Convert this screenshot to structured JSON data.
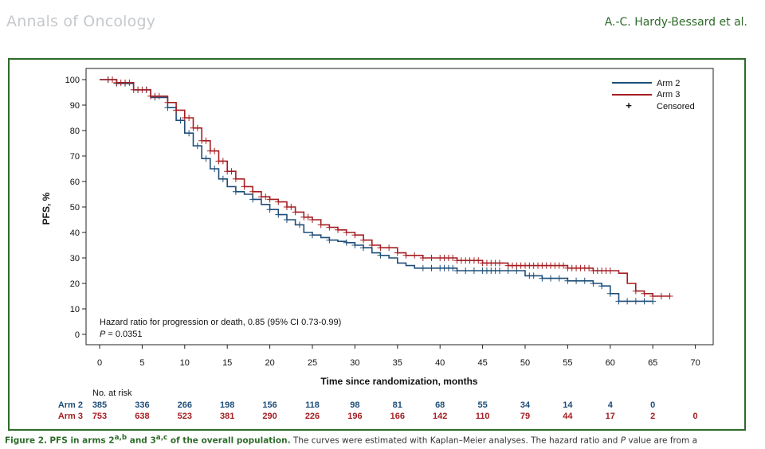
{
  "header": {
    "journal": "Annals of Oncology",
    "authors": "A.-C. Hardy-Bessard et al."
  },
  "caption": {
    "label": "Figure 2.",
    "title_pre": "PFS in arms 2",
    "sup_arm2": "a,b",
    "title_mid": " and 3",
    "sup_arm3": "a,c",
    "title_post": " of the overall population.",
    "body_pre": " The curves were estimated with Kaplan–Meier analyses. The hazard ratio and ",
    "p_letter": "P",
    "body_post": " value are from a"
  },
  "colors": {
    "arm2": "#1f4e79",
    "arm3": "#a51e22",
    "frame": "#2e6b2a"
  },
  "chart_data": {
    "type": "line",
    "ylabel": "PFS, %",
    "xlabel": "Time since randomization, months",
    "xlim": [
      0,
      70
    ],
    "ylim": [
      0,
      100
    ],
    "x_ticks": [
      "0",
      "5",
      "10",
      "15",
      "20",
      "25",
      "30",
      "35",
      "40",
      "45",
      "50",
      "55",
      "60",
      "65",
      "70"
    ],
    "y_ticks": [
      "0",
      "10",
      "20",
      "30",
      "40",
      "50",
      "60",
      "70",
      "80",
      "90",
      "100"
    ],
    "legend": {
      "placement": "top-right",
      "arm2": "Arm 2",
      "arm3": "Arm 3",
      "censored": "Censored",
      "censor_symbol": "+"
    },
    "annotation": {
      "hazard_text": "Hazard ratio for progression or death, 0.85 (95% CI  0.73-0.99)",
      "p_label": "P",
      "p_value": " = 0.0351"
    },
    "series": [
      {
        "name": "Arm 2",
        "points": [
          [
            0,
            100
          ],
          [
            2,
            98.5
          ],
          [
            4,
            96
          ],
          [
            6,
            93
          ],
          [
            8,
            89
          ],
          [
            9,
            84
          ],
          [
            10,
            79
          ],
          [
            11,
            74
          ],
          [
            12,
            69
          ],
          [
            13,
            65
          ],
          [
            14,
            61
          ],
          [
            15,
            58
          ],
          [
            16,
            56
          ],
          [
            17,
            55
          ],
          [
            18,
            53
          ],
          [
            19,
            51
          ],
          [
            20,
            49
          ],
          [
            21,
            47
          ],
          [
            22,
            45
          ],
          [
            23,
            43
          ],
          [
            24,
            40
          ],
          [
            25,
            39
          ],
          [
            26,
            38
          ],
          [
            27,
            37
          ],
          [
            28,
            36.5
          ],
          [
            29,
            36
          ],
          [
            30,
            35
          ],
          [
            31,
            34
          ],
          [
            32,
            32
          ],
          [
            33,
            31
          ],
          [
            34,
            30
          ],
          [
            35,
            28
          ],
          [
            36,
            27
          ],
          [
            37,
            26
          ],
          [
            40,
            26
          ],
          [
            42,
            25
          ],
          [
            48,
            25
          ],
          [
            50,
            23
          ],
          [
            52,
            22
          ],
          [
            55,
            21
          ],
          [
            58,
            20
          ],
          [
            59,
            19
          ],
          [
            60,
            16
          ],
          [
            61,
            13
          ],
          [
            65,
            13
          ]
        ],
        "censor_x": [
          1,
          2,
          3,
          4.5,
          5.5,
          6.5,
          8,
          9.5,
          10.5,
          11.5,
          12.5,
          13.5,
          14.5,
          16,
          18,
          20,
          21,
          22,
          23.5,
          25,
          27,
          29,
          30,
          31,
          33,
          38,
          39,
          40,
          40.5,
          41,
          41.5,
          42,
          43,
          44,
          45,
          45.5,
          46,
          46.5,
          47,
          48,
          49,
          50.5,
          51,
          52,
          53,
          54,
          55,
          56,
          57,
          58,
          59,
          60,
          61,
          62,
          63,
          64,
          65
        ]
      },
      {
        "name": "Arm 3",
        "points": [
          [
            0,
            100
          ],
          [
            2,
            98.8
          ],
          [
            4,
            96
          ],
          [
            6,
            93.5
          ],
          [
            8,
            91
          ],
          [
            9,
            88
          ],
          [
            10,
            85
          ],
          [
            11,
            81
          ],
          [
            12,
            76
          ],
          [
            13,
            72
          ],
          [
            14,
            68
          ],
          [
            15,
            64
          ],
          [
            16,
            61
          ],
          [
            17,
            58
          ],
          [
            18,
            56
          ],
          [
            19,
            54
          ],
          [
            20,
            53
          ],
          [
            21,
            52
          ],
          [
            22,
            50
          ],
          [
            23,
            48
          ],
          [
            24,
            46
          ],
          [
            25,
            45
          ],
          [
            26,
            43
          ],
          [
            27,
            42
          ],
          [
            28,
            41
          ],
          [
            29,
            40
          ],
          [
            30,
            39
          ],
          [
            31,
            37
          ],
          [
            32,
            35
          ],
          [
            33,
            34
          ],
          [
            35,
            32
          ],
          [
            36,
            31
          ],
          [
            38,
            30
          ],
          [
            40,
            30
          ],
          [
            42,
            29
          ],
          [
            45,
            28
          ],
          [
            48,
            27
          ],
          [
            50,
            27
          ],
          [
            55,
            26
          ],
          [
            58,
            25
          ],
          [
            60,
            25
          ],
          [
            61,
            24
          ],
          [
            62,
            20
          ],
          [
            63,
            17
          ],
          [
            64,
            16
          ],
          [
            65,
            15
          ],
          [
            67,
            15
          ]
        ],
        "censor_x": [
          1,
          1.5,
          2,
          2.5,
          3,
          3.5,
          4,
          4.5,
          5,
          5.5,
          6,
          6.5,
          7,
          8,
          9,
          10,
          10.5,
          11,
          11.5,
          12,
          12.5,
          13,
          13.5,
          14,
          14.5,
          15,
          15.5,
          16,
          17,
          18,
          19,
          19.5,
          20,
          21,
          22,
          22.5,
          23,
          24,
          24.5,
          25,
          26,
          27,
          28,
          29,
          30,
          31,
          32,
          33,
          34,
          35,
          36,
          37,
          38,
          39,
          40,
          40.5,
          41,
          41.5,
          42,
          42.5,
          43,
          43.5,
          44,
          44.5,
          45,
          45.5,
          46,
          46.5,
          47,
          48,
          48.5,
          49,
          49.5,
          50,
          50.5,
          51,
          51.5,
          52,
          52.5,
          53,
          53.5,
          54,
          54.5,
          55,
          55.5,
          56,
          56.5,
          57,
          57.5,
          58,
          58.5,
          59,
          59.5,
          60,
          63,
          64,
          65,
          66,
          67
        ]
      }
    ],
    "risk_table": {
      "title": "No. at risk",
      "rows": [
        {
          "label": "Arm 2",
          "values": [
            "385",
            "336",
            "266",
            "198",
            "156",
            "118",
            "98",
            "81",
            "68",
            "55",
            "34",
            "14",
            "4",
            "0"
          ]
        },
        {
          "label": "Arm 3",
          "values": [
            "753",
            "638",
            "523",
            "381",
            "290",
            "226",
            "196",
            "166",
            "142",
            "110",
            "79",
            "44",
            "17",
            "2",
            "0"
          ]
        }
      ]
    }
  }
}
